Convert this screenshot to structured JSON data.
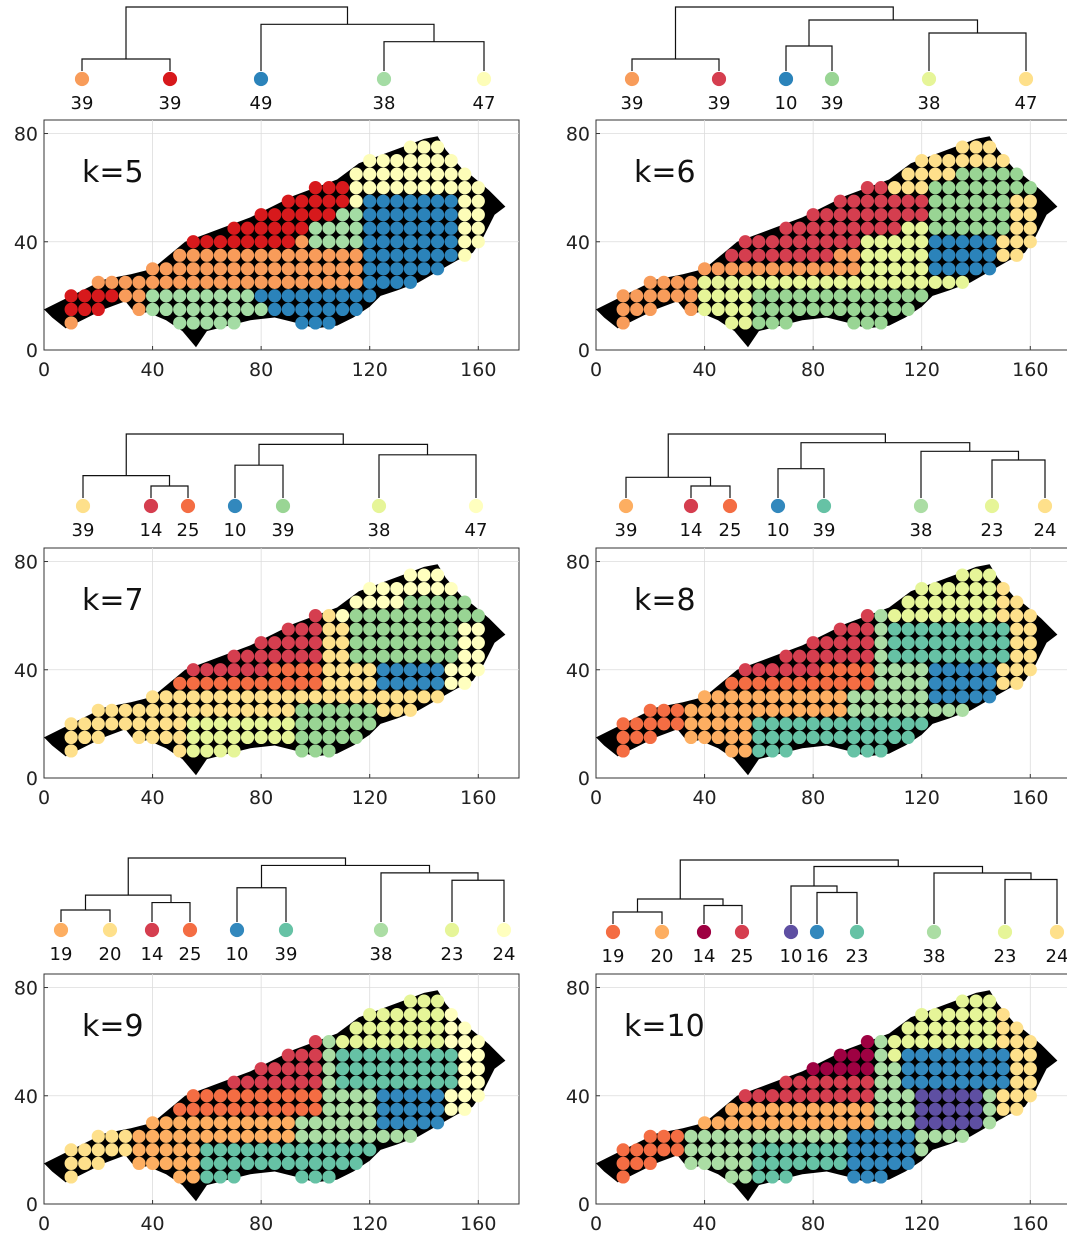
{
  "chart_data": [
    {
      "type": "scatter",
      "panel_label": "k=5",
      "xlim": [
        0,
        175
      ],
      "ylim": [
        0,
        85
      ],
      "xticks": [
        0,
        40,
        80,
        120,
        160
      ],
      "yticks": [
        0,
        40,
        80
      ],
      "grid": true,
      "clusters": [
        {
          "count": "39",
          "color": "#f89c5a"
        },
        {
          "count": "39",
          "color": "#d7191c"
        },
        {
          "count": "49",
          "color": "#2b83ba"
        },
        {
          "count": "38",
          "color": "#a4dca4"
        },
        {
          "count": "47",
          "color": "#fdfdb8"
        }
      ],
      "dendrogram": {
        "merges": [
          [
            0,
            1
          ],
          [
            3,
            4
          ],
          [
            2,
            6
          ],
          [
            5,
            7
          ]
        ]
      }
    },
    {
      "type": "scatter",
      "panel_label": "k=6",
      "xlim": [
        0,
        175
      ],
      "ylim": [
        0,
        85
      ],
      "xticks": [
        0,
        40,
        80,
        120,
        160
      ],
      "yticks": [
        0,
        40,
        80
      ],
      "grid": true,
      "clusters": [
        {
          "count": "39",
          "color": "#f89c5a"
        },
        {
          "count": "39",
          "color": "#d53e4f"
        },
        {
          "count": "10",
          "color": "#2b83ba"
        },
        {
          "count": "39",
          "color": "#99d594"
        },
        {
          "count": "38",
          "color": "#e6f598"
        },
        {
          "count": "47",
          "color": "#fee08b"
        }
      ],
      "dendrogram": {
        "merges": [
          [
            0,
            1
          ],
          [
            2,
            3
          ],
          [
            4,
            5
          ],
          [
            7,
            8
          ],
          [
            6,
            9
          ]
        ]
      }
    },
    {
      "type": "scatter",
      "panel_label": "k=7",
      "xlim": [
        0,
        175
      ],
      "ylim": [
        0,
        85
      ],
      "xticks": [
        0,
        40,
        80,
        120,
        160
      ],
      "yticks": [
        0,
        40,
        80
      ],
      "grid": true,
      "clusters": [
        {
          "count": "39",
          "color": "#fee08b"
        },
        {
          "count": "14",
          "color": "#d53e4f"
        },
        {
          "count": "25",
          "color": "#f46d43"
        },
        {
          "count": "10",
          "color": "#3288bd"
        },
        {
          "count": "39",
          "color": "#99d594"
        },
        {
          "count": "38",
          "color": "#e6f598"
        },
        {
          "count": "47",
          "color": "#ffffbf"
        }
      ],
      "dendrogram": {
        "merges": [
          [
            1,
            2
          ],
          [
            0,
            7
          ],
          [
            3,
            4
          ],
          [
            5,
            6
          ],
          [
            9,
            10
          ],
          [
            8,
            11
          ]
        ]
      }
    },
    {
      "type": "scatter",
      "panel_label": "k=8",
      "xlim": [
        0,
        175
      ],
      "ylim": [
        0,
        85
      ],
      "xticks": [
        0,
        40,
        80,
        120,
        160
      ],
      "yticks": [
        0,
        40,
        80
      ],
      "grid": true,
      "clusters": [
        {
          "count": "39",
          "color": "#fdae61"
        },
        {
          "count": "14",
          "color": "#d53e4f"
        },
        {
          "count": "25",
          "color": "#f46d43"
        },
        {
          "count": "10",
          "color": "#3288bd"
        },
        {
          "count": "39",
          "color": "#66c2a5"
        },
        {
          "count": "38",
          "color": "#abdda4"
        },
        {
          "count": "23",
          "color": "#e6f598"
        },
        {
          "count": "24",
          "color": "#fee08b"
        }
      ],
      "dendrogram": {
        "merges": [
          [
            1,
            2
          ],
          [
            0,
            8
          ],
          [
            3,
            4
          ],
          [
            6,
            7
          ],
          [
            5,
            11
          ],
          [
            10,
            12
          ],
          [
            9,
            13
          ]
        ]
      }
    },
    {
      "type": "scatter",
      "panel_label": "k=9",
      "xlim": [
        0,
        175
      ],
      "ylim": [
        0,
        85
      ],
      "xticks": [
        0,
        40,
        80,
        120,
        160
      ],
      "yticks": [
        0,
        40,
        80
      ],
      "grid": true,
      "clusters": [
        {
          "count": "19",
          "color": "#fdae61"
        },
        {
          "count": "20",
          "color": "#fee08b"
        },
        {
          "count": "14",
          "color": "#d53e4f"
        },
        {
          "count": "25",
          "color": "#f46d43"
        },
        {
          "count": "10",
          "color": "#3288bd"
        },
        {
          "count": "39",
          "color": "#66c2a5"
        },
        {
          "count": "38",
          "color": "#abdda4"
        },
        {
          "count": "23",
          "color": "#e6f598"
        },
        {
          "count": "24",
          "color": "#ffffbf"
        }
      ],
      "dendrogram": {
        "merges": [
          [
            0,
            1
          ],
          [
            2,
            3
          ],
          [
            9,
            10
          ],
          [
            4,
            5
          ],
          [
            7,
            8
          ],
          [
            6,
            13
          ],
          [
            12,
            14
          ],
          [
            11,
            15
          ]
        ]
      }
    },
    {
      "type": "scatter",
      "panel_label": "k=10",
      "xlim": [
        0,
        175
      ],
      "ylim": [
        0,
        85
      ],
      "xticks": [
        0,
        40,
        80,
        120,
        160
      ],
      "yticks": [
        0,
        40,
        80
      ],
      "grid": true,
      "clusters": [
        {
          "count": "19",
          "color": "#f46d43"
        },
        {
          "count": "20",
          "color": "#fdae61"
        },
        {
          "count": "14",
          "color": "#9e0142"
        },
        {
          "count": "25",
          "color": "#d53e4f"
        },
        {
          "count": "10",
          "color": "#5e4fa2"
        },
        {
          "count": "16",
          "color": "#3288bd"
        },
        {
          "count": "23",
          "color": "#66c2a5"
        },
        {
          "count": "38",
          "color": "#abdda4"
        },
        {
          "count": "23",
          "color": "#e6f598"
        },
        {
          "count": "24",
          "color": "#fee08b"
        }
      ],
      "dendrogram": {
        "merges": [
          [
            0,
            1
          ],
          [
            2,
            3
          ],
          [
            10,
            11
          ],
          [
            5,
            6
          ],
          [
            4,
            13
          ],
          [
            8,
            9
          ],
          [
            7,
            15
          ],
          [
            14,
            16
          ],
          [
            12,
            17
          ]
        ]
      }
    }
  ]
}
